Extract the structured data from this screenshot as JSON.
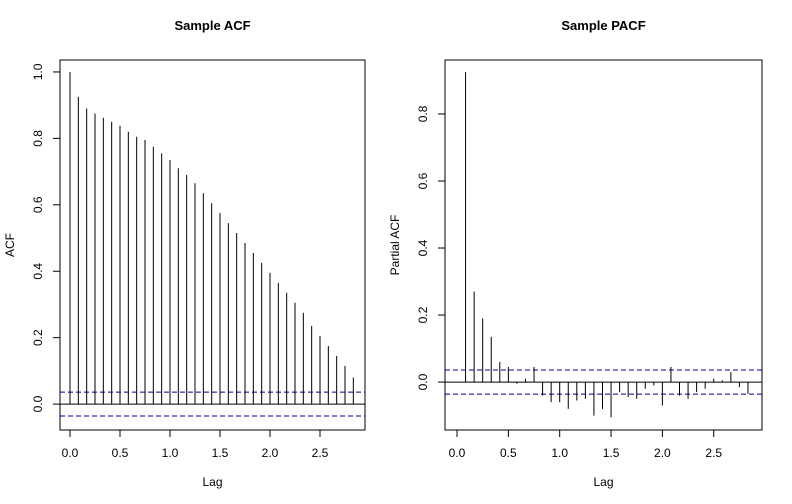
{
  "chart_data": [
    {
      "type": "stem",
      "title": "Sample ACF",
      "xlabel": "Lag",
      "ylabel": "ACF",
      "color": "#000000",
      "conf_color": "#00008b",
      "x": [
        0,
        0.0833,
        0.1667,
        0.25,
        0.3333,
        0.4167,
        0.5,
        0.5833,
        0.6667,
        0.75,
        0.8333,
        0.9167,
        1.0,
        1.0833,
        1.1667,
        1.25,
        1.3333,
        1.4167,
        1.5,
        1.5833,
        1.6667,
        1.75,
        1.8333,
        1.9167,
        2.0,
        2.0833,
        2.1667,
        2.25,
        2.3333,
        2.4167,
        2.5,
        2.5833,
        2.6667,
        2.75,
        2.8333
      ],
      "values": [
        1.0,
        0.925,
        0.89,
        0.875,
        0.862,
        0.85,
        0.838,
        0.82,
        0.805,
        0.795,
        0.775,
        0.755,
        0.735,
        0.71,
        0.69,
        0.665,
        0.635,
        0.605,
        0.575,
        0.545,
        0.515,
        0.485,
        0.455,
        0.425,
        0.395,
        0.365,
        0.335,
        0.305,
        0.275,
        0.235,
        0.205,
        0.175,
        0.145,
        0.115,
        0.08
      ],
      "conf_limits": [
        0.036,
        -0.036
      ],
      "xlim": [
        -0.1,
        2.95
      ],
      "ylim": [
        -0.078,
        1.036
      ],
      "xticks": [
        {
          "value": 0,
          "label": "0.0"
        },
        0.5,
        {
          "value": 1,
          "label": "1.0"
        },
        1.5,
        {
          "value": 2,
          "label": "2.0"
        },
        2.5
      ],
      "yticks": [
        {
          "value": 0,
          "label": "0.0"
        },
        0.2,
        0.4,
        0.6,
        0.8,
        {
          "value": 1,
          "label": "1.0"
        }
      ]
    },
    {
      "type": "stem",
      "title": "Sample PACF",
      "xlabel": "Lag",
      "ylabel": "Partial ACF",
      "color": "#000000",
      "conf_color": "#00008b",
      "x": [
        0.0833,
        0.1667,
        0.25,
        0.3333,
        0.4167,
        0.5,
        0.5833,
        0.6667,
        0.75,
        0.8333,
        0.9167,
        1.0,
        1.0833,
        1.1667,
        1.25,
        1.3333,
        1.4167,
        1.5,
        1.5833,
        1.6667,
        1.75,
        1.8333,
        1.9167,
        2.0,
        2.0833,
        2.1667,
        2.25,
        2.3333,
        2.4167,
        2.5,
        2.5833,
        2.6667,
        2.75,
        2.8333
      ],
      "values": [
        0.925,
        0.27,
        0.19,
        0.135,
        0.06,
        0.045,
        -0.005,
        0.01,
        0.045,
        -0.04,
        -0.06,
        -0.06,
        -0.08,
        -0.055,
        -0.05,
        -0.1,
        -0.08,
        -0.105,
        -0.03,
        -0.045,
        -0.05,
        -0.02,
        -0.01,
        -0.07,
        0.045,
        -0.04,
        -0.05,
        -0.03,
        -0.02,
        0.01,
        0.005,
        0.03,
        -0.015,
        -0.035
      ],
      "conf_limits": [
        0.036,
        -0.036
      ],
      "xlim": [
        -0.117,
        2.97
      ],
      "ylim": [
        -0.143,
        0.961
      ],
      "xticks": [
        {
          "value": 0,
          "label": "0.0"
        },
        0.5,
        {
          "value": 1,
          "label": "1.0"
        },
        1.5,
        {
          "value": 2,
          "label": "2.0"
        },
        2.5
      ],
      "yticks": [
        {
          "value": 0,
          "label": "0.0"
        },
        0.2,
        0.4,
        0.6,
        0.8
      ]
    }
  ]
}
